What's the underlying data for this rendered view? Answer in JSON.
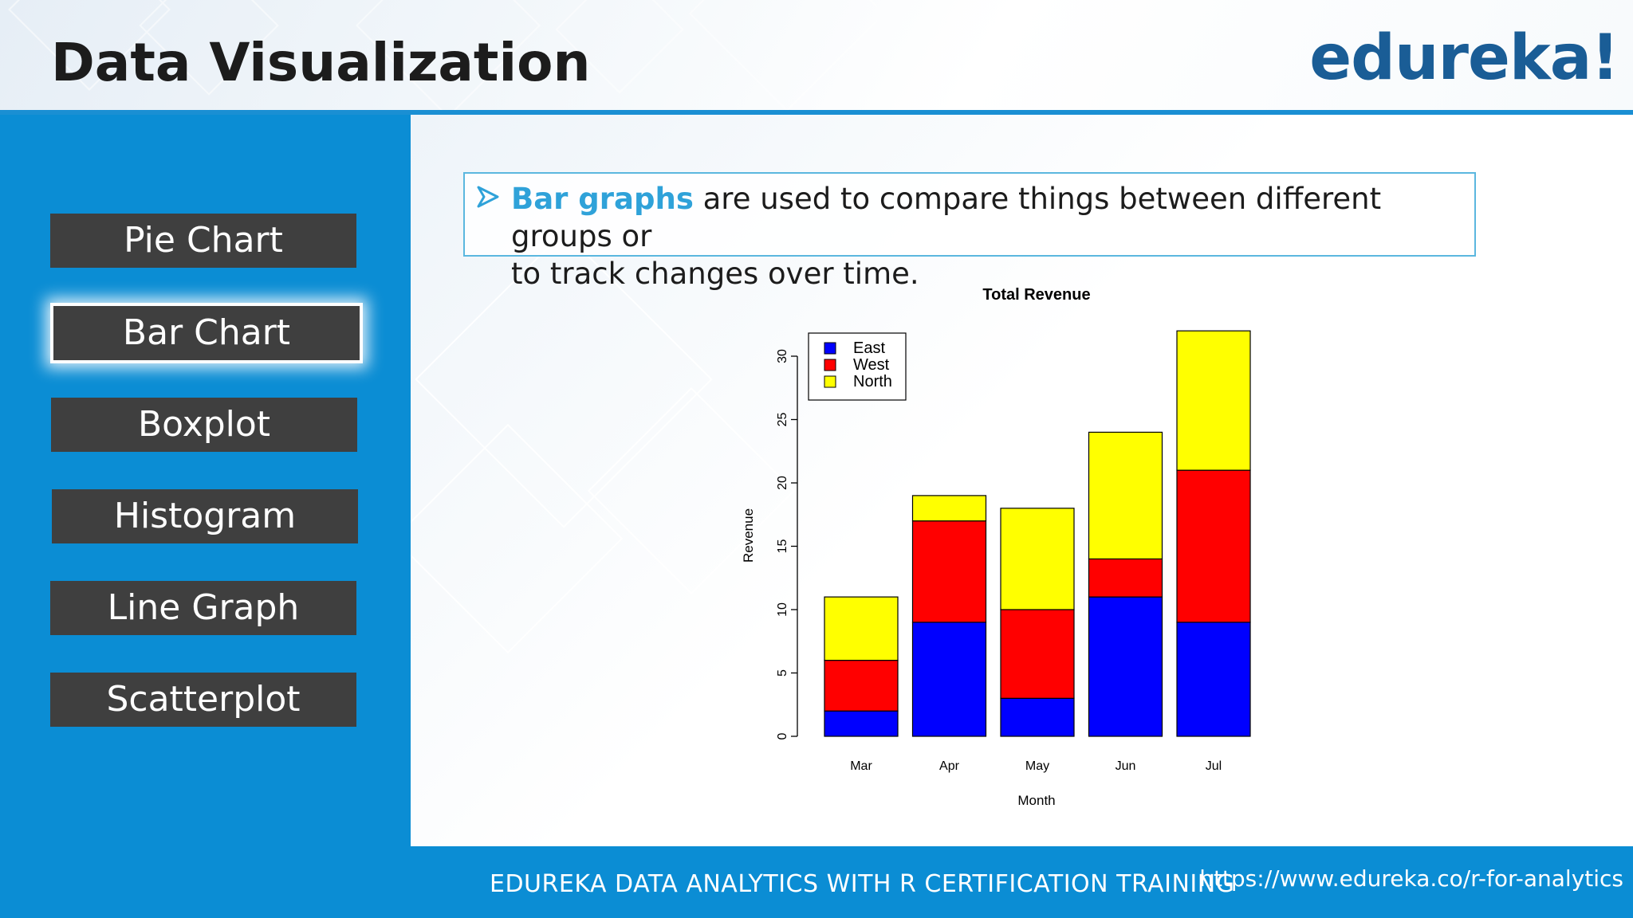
{
  "header": {
    "title": "Data Visualization",
    "logo_text": "edureka!",
    "logo_color": "#1a5d96"
  },
  "sidebar": {
    "items": [
      {
        "label": "Pie Chart",
        "active": false
      },
      {
        "label": "Bar Chart",
        "active": true
      },
      {
        "label": "Boxplot",
        "active": false
      },
      {
        "label": "Histogram",
        "active": false
      },
      {
        "label": "Line Graph",
        "active": false
      },
      {
        "label": "Scatterplot",
        "active": false
      }
    ]
  },
  "bullet": {
    "icon": "arrow-bullet-icon",
    "highlight": "Bar graphs",
    "text_line1": " are used to compare things between different groups or",
    "text_line2": "to track changes over time."
  },
  "chart_data": {
    "type": "bar",
    "stacked": true,
    "title": "Total Revenue",
    "xlabel": "Month",
    "ylabel": "Revenue",
    "categories": [
      "Mar",
      "Apr",
      "May",
      "Jun",
      "Jul"
    ],
    "series": [
      {
        "name": "East",
        "color": "#0000ff",
        "values": [
          2,
          9,
          3,
          11,
          9
        ]
      },
      {
        "name": "West",
        "color": "#ff0000",
        "values": [
          4,
          8,
          7,
          3,
          12
        ]
      },
      {
        "name": "North",
        "color": "#ffff00",
        "values": [
          5,
          2,
          8,
          10,
          11
        ]
      }
    ],
    "ylim": [
      0,
      32
    ],
    "yticks": [
      0,
      5,
      10,
      15,
      20,
      25,
      30
    ],
    "legend_position": "top-left",
    "grid": false
  },
  "footer": {
    "course": "EDUREKA DATA ANALYTICS WITH R CERTIFICATION TRAINING",
    "url": "https://www.edureka.co/r-for-analytics"
  },
  "colors": {
    "accent_blue": "#0b8dd4",
    "button_gray": "#3f3f3f",
    "highlight": "#2fa2d9"
  }
}
